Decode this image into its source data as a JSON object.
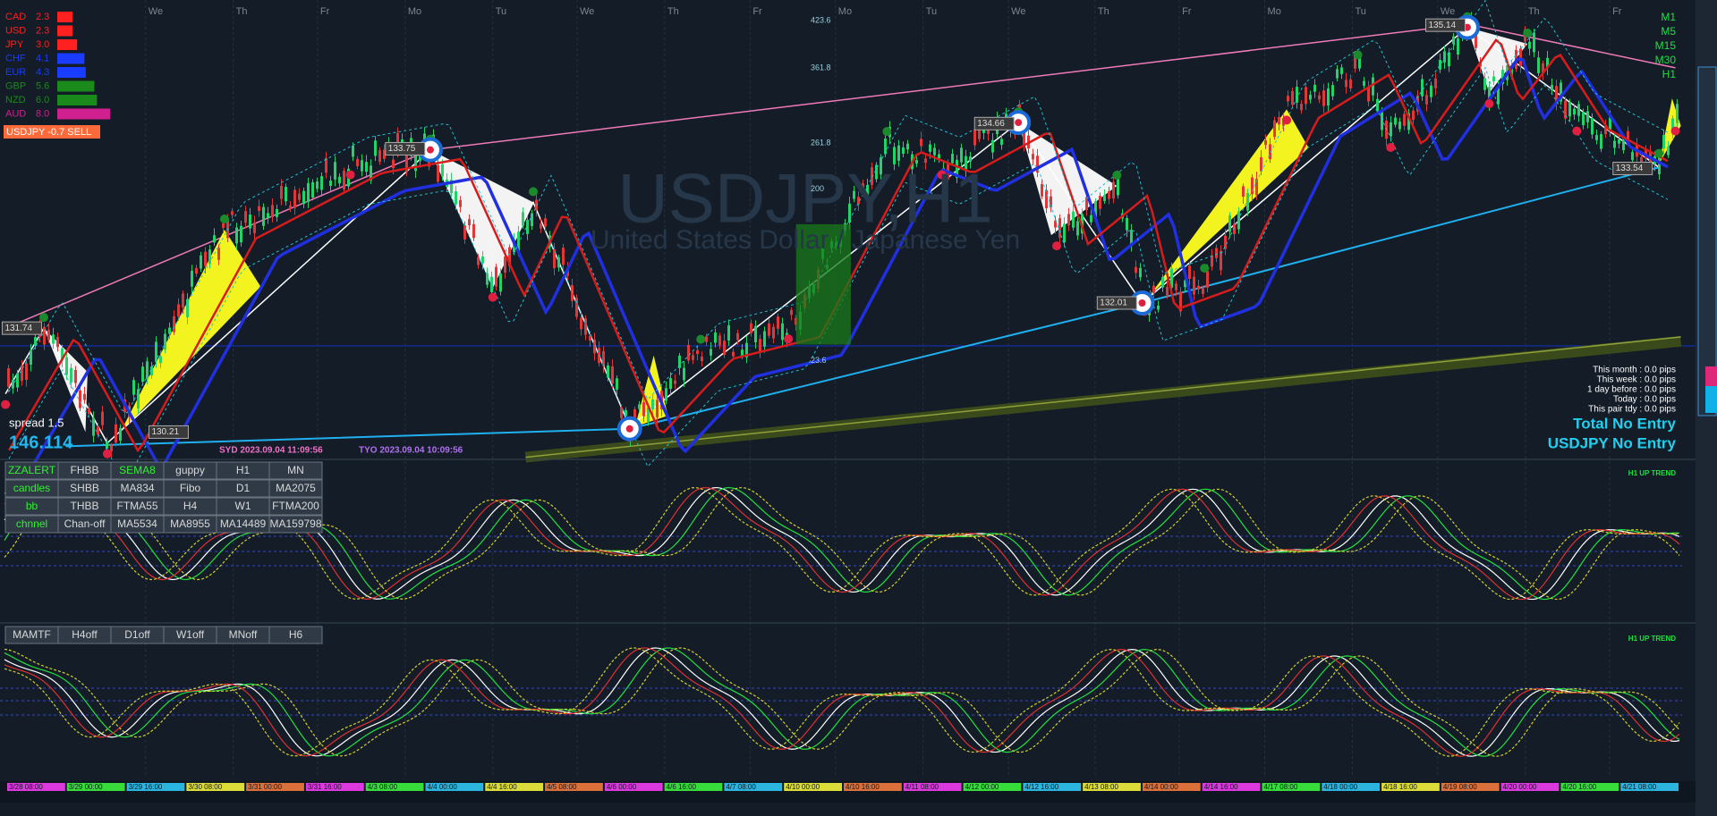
{
  "strength": [
    {
      "currency": "CAD",
      "value": "2.3",
      "color": "#ff2020"
    },
    {
      "currency": "USD",
      "value": "2.3",
      "color": "#ff2020"
    },
    {
      "currency": "JPY",
      "value": "3.0",
      "color": "#ff2020"
    },
    {
      "currency": "CHF",
      "value": "4.1",
      "color": "#1a3cff"
    },
    {
      "currency": "EUR",
      "value": "4.3",
      "color": "#1a3cff"
    },
    {
      "currency": "GBP",
      "value": "5.6",
      "color": "#1a8a1a"
    },
    {
      "currency": "NZD",
      "value": "6.0",
      "color": "#1a8a1a"
    },
    {
      "currency": "AUD",
      "value": "8.0",
      "color": "#d0208f"
    }
  ],
  "signal": "USDJPY -0.7 SELL",
  "timeframes": [
    "M1",
    "M5",
    "M15",
    "M30",
    "H1"
  ],
  "days": [
    "We",
    "Th",
    "Fr",
    "Mo",
    "Tu",
    "We",
    "Th",
    "Fr",
    "Mo",
    "Tu",
    "We",
    "Th",
    "Fr",
    "Mo",
    "Tu",
    "We",
    "Th",
    "Fr"
  ],
  "watermark": {
    "symbol": "USDJPY,H1",
    "description": "United States Dollar / Japanese Yen"
  },
  "fibo_levels": [
    "423.6",
    "361.8",
    "261.8",
    "200",
    "23.6"
  ],
  "price_labels": [
    "131.74",
    "133.75",
    "130.21",
    "134.66",
    "132.01",
    "135.14",
    "133.54"
  ],
  "spread": "spread 1.5",
  "bid": "146.114",
  "sessions": [
    "SYD 2023.09.04 11:09:56",
    "TYO 2023.09.04 10:09:56"
  ],
  "stats": [
    "This month : 0.0 pips",
    "This week : 0.0 pips",
    "1 day before : 0.0 pips",
    "Today : 0.0 pips",
    "This pair tdy : 0.0 pips"
  ],
  "entries": [
    "Total No Entry",
    "USDJPY No Entry"
  ],
  "trend_labels": [
    "H1 UP TREND",
    "H1 UP TREND"
  ],
  "buttons_top": [
    [
      "ZZALERT",
      "FHBB",
      "SEMA8",
      "guppy",
      "H1",
      "MN"
    ],
    [
      "candles",
      "SHBB",
      "MA834",
      "Fibo",
      "D1",
      "MA2075"
    ],
    [
      "bb",
      "THBB",
      "FTMA55",
      "H4",
      "W1",
      "FTMA200"
    ],
    [
      "chnnel",
      "Chan-off",
      "MA5534",
      "MA8955",
      "MA14489",
      "MA159798"
    ]
  ],
  "buttons_bottom": [
    "MAMTF",
    "H4off",
    "D1off",
    "W1off",
    "MNoff",
    "H6"
  ],
  "timeline": [
    "3/28 08:00",
    "3/29 00:00",
    "3/29 16:00",
    "3/30 08:00",
    "3/31 00:00",
    "3/31 16:00",
    "4/3 08:00",
    "4/4 00:00",
    "4/4 16:00",
    "4/5 08:00",
    "4/6 00:00",
    "4/6 16:00",
    "4/7 08:00",
    "4/10 00:00",
    "4/10 16:00",
    "4/11 08:00",
    "4/12 00:00",
    "4/12 16:00",
    "4/13 08:00",
    "4/14 00:00",
    "4/14 16:00",
    "4/17 08:00",
    "4/18 00:00",
    "4/18 16:00",
    "4/19 08:00",
    "4/20 00:00",
    "4/20 16:00",
    "4/21 08:00"
  ]
}
